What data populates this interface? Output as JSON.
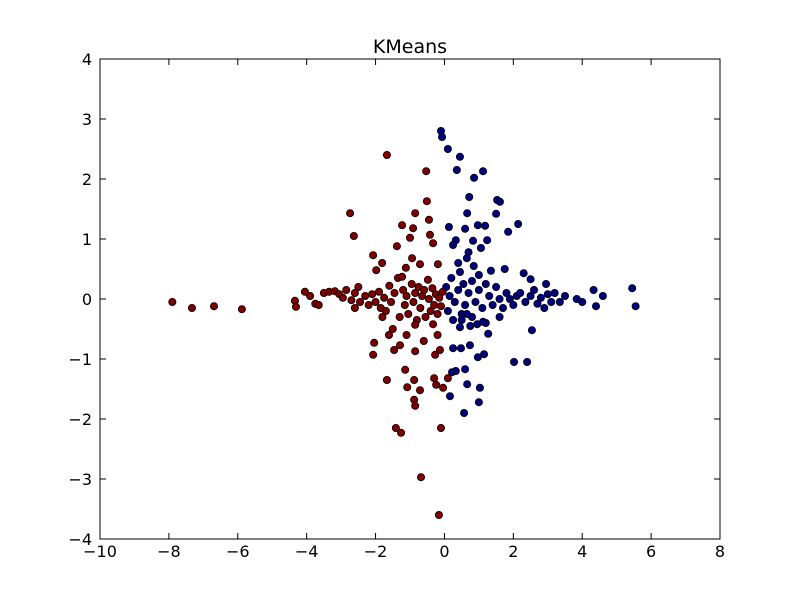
{
  "chart_data": {
    "type": "scatter",
    "title": "KMeans",
    "xlim": [
      -10,
      8
    ],
    "ylim": [
      -4,
      4
    ],
    "xticks": [
      {
        "value": -10,
        "label": "−10"
      },
      {
        "value": -8,
        "label": "−8"
      },
      {
        "value": -6,
        "label": "−6"
      },
      {
        "value": -4,
        "label": "−4"
      },
      {
        "value": -2,
        "label": "−2"
      },
      0,
      2,
      4,
      6,
      8
    ],
    "yticks": [
      {
        "value": -4,
        "label": "−4"
      },
      {
        "value": -3,
        "label": "−3"
      },
      {
        "value": -2,
        "label": "−2"
      },
      {
        "value": -1,
        "label": "−1"
      },
      0,
      1,
      2,
      3,
      4
    ],
    "grid": false,
    "series": [
      {
        "color": "#7f0000",
        "x": [
          -7.9,
          -7.33,
          -6.69,
          -5.88,
          -4.34,
          -4.31,
          -4.05,
          -3.9,
          -3.75,
          -3.65,
          -3.5,
          -3.35,
          -3.18,
          -3.05,
          -2.95,
          -2.85,
          -2.74,
          -2.63,
          -2.7,
          -2.6,
          -2.5,
          -2.45,
          -2.3,
          -2.2,
          -2.07,
          -1.98,
          -1.81,
          -2.1,
          -2.0,
          -1.9,
          -1.85,
          -1.75,
          -1.67,
          -1.7,
          -1.6,
          -1.55,
          -1.45,
          -1.38,
          -1.35,
          -1.3,
          -1.23,
          -1.23,
          -1.12,
          -1.2,
          -1.15,
          -1.1,
          -1.0,
          -1.05,
          -0.94,
          -0.91,
          -0.95,
          -0.9,
          -0.85,
          -0.85,
          -0.8,
          -0.75,
          -0.71,
          -0.7,
          -0.65,
          -0.59,
          -0.55,
          -0.53,
          -0.51,
          -0.48,
          -0.45,
          -0.45,
          -0.42,
          -0.4,
          -0.33,
          -0.35,
          -0.3,
          -0.25,
          -0.2,
          -0.19,
          -0.15,
          -0.1,
          -0.05,
          -0.33,
          -0.85,
          -1.5,
          -2.04,
          -2.07,
          -1.61,
          -1.46,
          -1.29,
          -0.85,
          -0.27,
          -0.13,
          -1.67,
          -1.14,
          -0.88,
          -1.08,
          -0.71,
          -0.3,
          -0.24,
          -0.04,
          0.1,
          -0.88,
          -0.85,
          -1.41,
          -1.26,
          -0.1,
          -0.68,
          -0.16,
          -1.1,
          -0.6,
          -0.2,
          -1.8,
          -2.6
        ],
        "values": [
          -0.05,
          -0.15,
          -0.12,
          -0.17,
          -0.03,
          -0.13,
          0.12,
          0.05,
          -0.08,
          -0.1,
          0.1,
          0.12,
          0.13,
          0.08,
          0.02,
          0.15,
          1.43,
          1.05,
          -0.02,
          0.1,
          0.2,
          -0.05,
          0.05,
          -0.1,
          0.73,
          0.48,
          0.6,
          0.08,
          -0.05,
          0.12,
          -0.15,
          0.02,
          2.4,
          -0.2,
          0.22,
          -0.05,
          0.1,
          0.88,
          0.35,
          -0.3,
          1.23,
          0.37,
          0.52,
          0.15,
          -0.1,
          0.05,
          1.02,
          -0.25,
          0.68,
          1.18,
          0.25,
          -0.05,
          1.43,
          0.1,
          -0.35,
          0.2,
          0.58,
          -0.15,
          0.05,
          0.15,
          -0.3,
          2.13,
          1.63,
          0.32,
          1.32,
          0.0,
          1.07,
          -0.2,
          0.93,
          0.18,
          -0.1,
          0.08,
          -0.25,
          0.58,
          0.02,
          -0.12,
          0.12,
          -0.42,
          -0.43,
          -0.5,
          -0.73,
          -0.93,
          -0.6,
          -0.85,
          -0.77,
          -0.87,
          -0.93,
          -0.85,
          -1.35,
          -1.18,
          -1.35,
          -1.47,
          -1.52,
          -1.32,
          -1.43,
          -1.48,
          -1.32,
          -1.68,
          -1.78,
          -2.15,
          -2.23,
          -2.15,
          -2.97,
          -3.6,
          -0.6,
          -0.7,
          -0.6,
          -0.3,
          -0.15
        ]
      },
      {
        "color": "#00007f",
        "x": [
          -0.1,
          -0.07,
          0.1,
          0.45,
          0.36,
          1.12,
          0.86,
          0.72,
          1.53,
          1.61,
          0.66,
          1.5,
          0.13,
          0.6,
          0.97,
          1.18,
          2.14,
          1.85,
          0.33,
          0.25,
          0.83,
          1.24,
          1.06,
          0.7,
          0.65,
          0.4,
          0.45,
          0.85,
          1.35,
          1.75,
          2.3,
          2.95,
          2.5,
          1.0,
          0.2,
          0.05,
          0.15,
          0.3,
          0.4,
          0.55,
          0.6,
          0.7,
          0.8,
          0.9,
          1.0,
          1.1,
          1.2,
          1.3,
          1.4,
          1.5,
          1.6,
          1.7,
          1.8,
          1.9,
          2.0,
          2.1,
          2.2,
          2.35,
          2.5,
          2.6,
          2.7,
          2.8,
          2.9,
          3.0,
          3.1,
          3.2,
          3.35,
          3.5,
          3.84,
          4.0,
          4.33,
          4.4,
          4.6,
          5.45,
          5.55,
          0.1,
          0.25,
          0.5,
          0.8,
          1.2,
          1.6,
          2.54,
          2.02,
          2.4,
          0.25,
          0.48,
          0.74,
          0.97,
          1.15,
          0.6,
          0.33,
          0.22,
          0.66,
          1.03,
          0.16,
          1.0,
          0.57,
          1.27,
          0.95,
          1.12,
          0.75,
          0.45,
          0.5,
          0.65
        ],
        "values": [
          2.8,
          2.7,
          2.5,
          2.37,
          2.15,
          2.13,
          2.02,
          1.7,
          1.65,
          1.62,
          1.43,
          1.42,
          1.2,
          1.17,
          1.23,
          1.22,
          1.25,
          1.12,
          0.98,
          0.9,
          0.97,
          0.98,
          0.85,
          0.78,
          0.68,
          0.6,
          0.45,
          0.55,
          0.47,
          0.5,
          0.43,
          0.25,
          0.33,
          0.4,
          0.35,
          0.2,
          0.05,
          -0.05,
          0.15,
          0.25,
          -0.1,
          0.1,
          0.3,
          -0.05,
          0.15,
          -0.15,
          0.25,
          0.05,
          -0.1,
          0.2,
          0.0,
          -0.15,
          0.1,
          0.0,
          -0.1,
          0.05,
          0.1,
          -0.05,
          0.05,
          0.15,
          -0.08,
          0.02,
          -0.15,
          0.08,
          -0.05,
          0.1,
          -0.05,
          0.05,
          0.0,
          -0.05,
          0.15,
          -0.12,
          0.05,
          0.18,
          -0.12,
          -0.2,
          -0.35,
          -0.25,
          -0.3,
          -0.4,
          -0.3,
          -0.52,
          -1.05,
          -1.05,
          -0.82,
          -0.82,
          -0.77,
          -0.97,
          -0.92,
          -1.17,
          -1.2,
          -1.22,
          -1.42,
          -1.48,
          -1.62,
          -1.72,
          -1.9,
          -0.58,
          -0.42,
          -0.38,
          -0.45,
          -0.47,
          -0.35,
          -0.25
        ]
      }
    ]
  }
}
